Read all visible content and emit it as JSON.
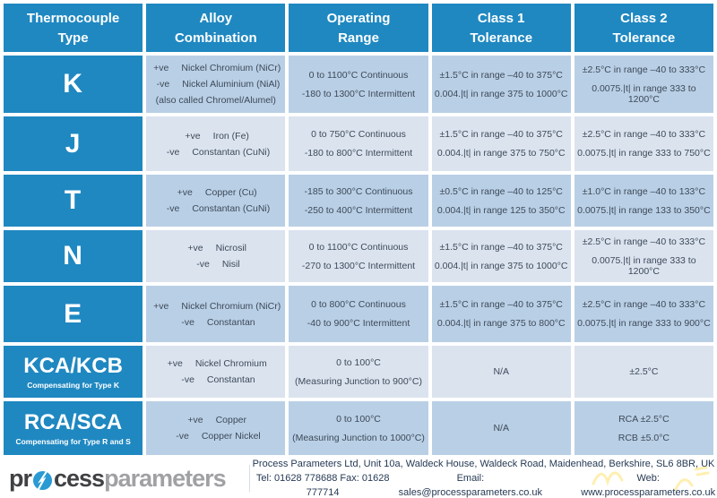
{
  "theme": {
    "header_blue": "#1f88c1",
    "row_medium": "#b9cfe5",
    "row_light": "#dbe3ef",
    "cell_text": "#3d4a59",
    "watermark_yellow": "#ffe066"
  },
  "table": {
    "header": {
      "cols": [
        {
          "l1": "Thermocouple",
          "l2": "Type"
        },
        {
          "l1": "Alloy",
          "l2": "Combination"
        },
        {
          "l1": "Operating",
          "l2": "Range"
        },
        {
          "l1": "Class 1",
          "l2": "Tolerance"
        },
        {
          "l1": "Class 2",
          "l2": "Tolerance"
        }
      ]
    },
    "rows": [
      {
        "type": "K",
        "subtitle": "",
        "alloy": [
          {
            "sign": "+ve",
            "name": "Nickel Chromium (NiCr)"
          },
          {
            "sign": "-ve",
            "name": "Nickel Aluminium (NiAl)"
          }
        ],
        "alloy_note": "(also called Chromel/Alumel)",
        "range": [
          "0 to 1100°C Continuous",
          "-180 to 1300°C Intermittent"
        ],
        "class1": [
          "±1.5°C in range –40 to 375°C",
          "0.004.|t| in range 375 to 1000°C"
        ],
        "class2": [
          "±2.5°C in range –40 to 333°C",
          "0.0075.|t| in range 333 to 1200°C"
        ]
      },
      {
        "type": "J",
        "subtitle": "",
        "alloy": [
          {
            "sign": "+ve",
            "name": "Iron (Fe)"
          },
          {
            "sign": "-ve",
            "name": "Constantan (CuNi)"
          }
        ],
        "alloy_note": "",
        "range": [
          "0 to 750°C Continuous",
          "-180 to 800°C Intermittent"
        ],
        "class1": [
          "±1.5°C in range –40 to 375°C",
          "0.004.|t| in range 375 to 750°C"
        ],
        "class2": [
          "±2.5°C in range –40 to 333°C",
          "0.0075.|t| in range 333 to 750°C"
        ]
      },
      {
        "type": "T",
        "subtitle": "",
        "alloy": [
          {
            "sign": "+ve",
            "name": "Copper (Cu)"
          },
          {
            "sign": "-ve",
            "name": "Constantan (CuNi)"
          }
        ],
        "alloy_note": "",
        "range": [
          "-185 to 300°C Continuous",
          "-250 to 400°C Intermittent"
        ],
        "class1": [
          "±0.5°C in range –40 to 125°C",
          "0.004.|t| in range 125 to 350°C"
        ],
        "class2": [
          "±1.0°C in range –40 to 133°C",
          "0.0075.|t| in range 133 to 350°C"
        ]
      },
      {
        "type": "N",
        "subtitle": "",
        "alloy": [
          {
            "sign": "+ve",
            "name": "Nicrosil"
          },
          {
            "sign": "-ve",
            "name": "Nisil"
          }
        ],
        "alloy_note": "",
        "range": [
          "0 to 1100°C Continuous",
          "-270 to 1300°C Intermittent"
        ],
        "class1": [
          "±1.5°C in range –40 to 375°C",
          "0.004.|t| in range 375 to 1000°C"
        ],
        "class2": [
          "±2.5°C in range –40 to 333°C",
          "0.0075.|t| in range 333 to 1200°C"
        ]
      },
      {
        "type": "E",
        "subtitle": "",
        "alloy": [
          {
            "sign": "+ve",
            "name": "Nickel Chromium (NiCr)"
          },
          {
            "sign": "-ve",
            "name": "Constantan"
          }
        ],
        "alloy_note": "",
        "range": [
          "0 to 800°C Continuous",
          "-40 to 900°C Intermittent"
        ],
        "class1": [
          "±1.5°C in range –40 to 375°C",
          "0.004.|t| in range 375 to 800°C"
        ],
        "class2": [
          "±2.5°C in range –40 to 333°C",
          "0.0075.|t| in range 333 to 900°C"
        ]
      },
      {
        "type": "KCA/KCB",
        "subtitle": "Compensating for Type K",
        "alloy": [
          {
            "sign": "+ve",
            "name": "Nickel Chromium"
          },
          {
            "sign": "-ve",
            "name": "Constantan"
          }
        ],
        "alloy_note": "",
        "range": [
          "0 to 100°C",
          "(Measuring Junction to 900°C)"
        ],
        "class1": [
          "N/A"
        ],
        "class2": [
          "±2.5°C"
        ]
      },
      {
        "type": "RCA/SCA",
        "subtitle": "Compensating for Type R and S",
        "alloy": [
          {
            "sign": "+ve",
            "name": "Copper"
          },
          {
            "sign": "-ve",
            "name": "Copper Nickel"
          }
        ],
        "alloy_note": "",
        "range": [
          "0 to 100°C",
          "(Measuring Junction to 1000°C)"
        ],
        "class1": [
          "N/A"
        ],
        "class2": [
          "RCA ±2.5°C",
          "RCB ±5.0°C"
        ]
      }
    ]
  },
  "footer": {
    "logo": {
      "part1": "pr",
      "part2": "cess",
      "part3": "parameters"
    },
    "address": "Process Parameters Ltd, Unit 10a, Waldeck House, Waldeck Road, Maidenhead, Berkshire, SL6 8BR, UK",
    "tel_fax": "Tel: 01628 778688 Fax: 01628 777714",
    "email": "Email: sales@processparameters.co.uk",
    "web": "Web: www.processparameters.co.uk"
  }
}
